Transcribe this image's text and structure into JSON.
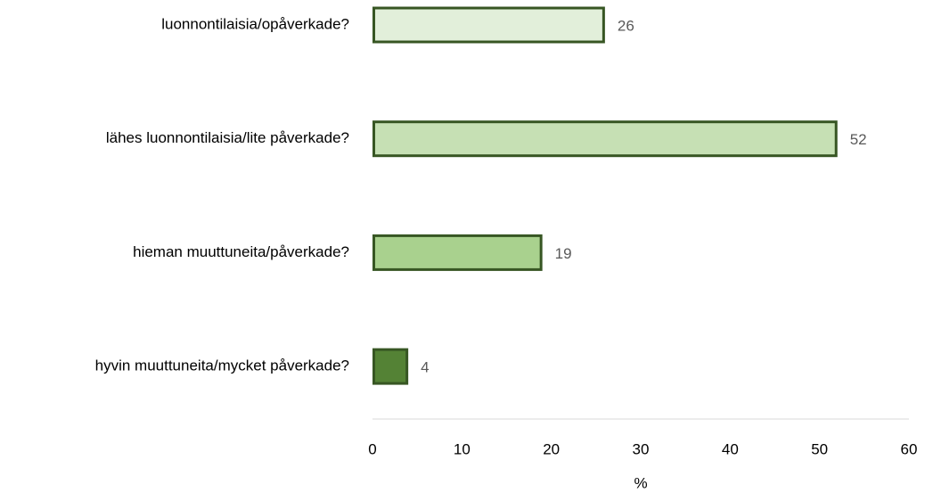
{
  "chart_data": {
    "type": "hbar",
    "categories": [
      "luonnontilaisia/opåverkade?",
      "lähes luonnontilaisia/lite påverkade?",
      "hieman muuttuneita/påverkade?",
      "hyvin muuttuneita/mycket påverkade?"
    ],
    "values": [
      26,
      52,
      19,
      4
    ],
    "colors": [
      "#e2efda",
      "#c6e0b4",
      "#a9d18e",
      "#548235"
    ],
    "edge_color": "#375623",
    "xlim": [
      0,
      60
    ],
    "xticks": [
      0,
      10,
      20,
      30,
      40,
      50,
      60
    ],
    "x_label": "%",
    "grid": false
  }
}
